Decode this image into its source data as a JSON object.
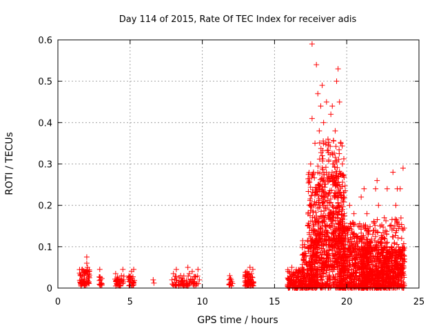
{
  "chart_data": {
    "type": "scatter",
    "title": "Day 114 of 2015, Rate Of TEC Index for receiver adis",
    "xlabel": "GPS time / hours",
    "ylabel": "ROTI / TECUs",
    "xlim": [
      0,
      25
    ],
    "ylim": [
      0,
      0.6
    ],
    "xticks": [
      0,
      5,
      10,
      15,
      20,
      25
    ],
    "yticks": [
      0,
      0.1,
      0.2,
      0.3,
      0.4,
      0.5,
      0.6
    ],
    "grid": true,
    "marker": "+",
    "color": "#ff0000",
    "series": [
      {
        "points": [
          [
            1.6,
            0.03
          ],
          [
            1.7,
            0.045
          ],
          [
            1.8,
            0.02
          ],
          [
            1.9,
            0.035
          ],
          [
            2.0,
            0.06
          ],
          [
            2.0,
            0.075
          ],
          [
            2.05,
            0.05
          ],
          [
            2.1,
            0.025
          ],
          [
            1.85,
            0.015
          ],
          [
            2.15,
            0.04
          ],
          [
            2.9,
            0.045
          ],
          [
            2.95,
            0.02
          ],
          [
            3.0,
            0.012
          ],
          [
            4.0,
            0.035
          ],
          [
            4.05,
            0.015
          ],
          [
            4.1,
            0.01
          ],
          [
            4.4,
            0.03
          ],
          [
            4.5,
            0.045
          ],
          [
            4.55,
            0.02
          ],
          [
            5.0,
            0.02
          ],
          [
            5.1,
            0.04
          ],
          [
            5.2,
            0.015
          ],
          [
            5.25,
            0.045
          ],
          [
            6.6,
            0.02
          ],
          [
            6.65,
            0.012
          ],
          [
            7.9,
            0.02
          ],
          [
            8.0,
            0.035
          ],
          [
            8.2,
            0.045
          ],
          [
            8.4,
            0.025
          ],
          [
            8.5,
            0.03
          ],
          [
            8.6,
            0.015
          ],
          [
            9.0,
            0.05
          ],
          [
            9.1,
            0.035
          ],
          [
            9.2,
            0.02
          ],
          [
            9.3,
            0.04
          ],
          [
            9.4,
            0.015
          ],
          [
            9.7,
            0.045
          ],
          [
            9.8,
            0.02
          ],
          [
            11.9,
            0.03
          ],
          [
            12.0,
            0.02
          ],
          [
            12.05,
            0.015
          ],
          [
            13.0,
            0.03
          ],
          [
            13.1,
            0.04
          ],
          [
            13.2,
            0.02
          ],
          [
            13.3,
            0.05
          ],
          [
            13.4,
            0.035
          ],
          [
            13.5,
            0.045
          ],
          [
            13.45,
            0.015
          ],
          [
            16.0,
            0.02
          ],
          [
            16.2,
            0.05
          ],
          [
            16.4,
            0.03
          ],
          [
            16.6,
            0.02
          ],
          [
            16.8,
            0.04
          ],
          [
            17.0,
            0.07
          ],
          [
            17.1,
            0.1
          ],
          [
            17.2,
            0.06
          ],
          [
            17.4,
            0.15
          ],
          [
            17.5,
            0.2
          ],
          [
            17.5,
            0.3
          ],
          [
            17.6,
            0.41
          ],
          [
            17.6,
            0.59
          ],
          [
            17.7,
            0.28
          ],
          [
            17.8,
            0.35
          ],
          [
            17.9,
            0.54
          ],
          [
            18.0,
            0.47
          ],
          [
            18.0,
            0.25
          ],
          [
            18.1,
            0.38
          ],
          [
            18.2,
            0.44
          ],
          [
            18.3,
            0.49
          ],
          [
            18.3,
            0.32
          ],
          [
            18.4,
            0.4
          ],
          [
            18.5,
            0.22
          ],
          [
            18.6,
            0.45
          ],
          [
            18.7,
            0.36
          ],
          [
            18.8,
            0.26
          ],
          [
            18.9,
            0.42
          ],
          [
            19.0,
            0.44
          ],
          [
            19.1,
            0.3
          ],
          [
            19.2,
            0.38
          ],
          [
            19.3,
            0.5
          ],
          [
            19.4,
            0.53
          ],
          [
            19.5,
            0.45
          ],
          [
            19.5,
            0.25
          ],
          [
            19.6,
            0.35
          ],
          [
            19.7,
            0.3
          ],
          [
            19.8,
            0.22
          ],
          [
            17.5,
            0.12
          ],
          [
            18.0,
            0.16
          ],
          [
            18.5,
            0.14
          ],
          [
            19.0,
            0.18
          ],
          [
            19.5,
            0.16
          ],
          [
            20.0,
            0.14
          ],
          [
            20.5,
            0.18
          ],
          [
            21.0,
            0.22
          ],
          [
            21.0,
            0.12
          ],
          [
            20.2,
            0.2
          ],
          [
            20.4,
            0.1
          ],
          [
            20.6,
            0.08
          ],
          [
            20.8,
            0.15
          ],
          [
            21.2,
            0.24
          ],
          [
            21.4,
            0.18
          ],
          [
            21.6,
            0.1
          ],
          [
            21.8,
            0.13
          ],
          [
            22.0,
            0.24
          ],
          [
            22.1,
            0.26
          ],
          [
            22.2,
            0.2
          ],
          [
            22.4,
            0.12
          ],
          [
            22.6,
            0.17
          ],
          [
            22.8,
            0.24
          ],
          [
            23.0,
            0.15
          ],
          [
            23.2,
            0.28
          ],
          [
            23.4,
            0.2
          ],
          [
            23.5,
            0.24
          ],
          [
            23.7,
            0.24
          ],
          [
            23.9,
            0.29
          ],
          [
            22.5,
            0.08
          ],
          [
            22.9,
            0.06
          ],
          [
            23.1,
            0.1
          ],
          [
            23.3,
            0.05
          ],
          [
            23.6,
            0.08
          ],
          [
            23.8,
            0.12
          ],
          [
            24.0,
            0.07
          ],
          [
            21.5,
            0.07
          ],
          [
            20.9,
            0.05
          ],
          [
            19.9,
            0.09
          ]
        ]
      }
    ],
    "clusters": [
      {
        "x": [
          1.5,
          2.2
        ],
        "y": [
          0.005,
          0.045
        ],
        "n": 60
      },
      {
        "x": [
          2.85,
          3.05
        ],
        "y": [
          0.005,
          0.03
        ],
        "n": 12
      },
      {
        "x": [
          3.95,
          4.6
        ],
        "y": [
          0.005,
          0.03
        ],
        "n": 30
      },
      {
        "x": [
          4.9,
          5.3
        ],
        "y": [
          0.005,
          0.03
        ],
        "n": 25
      },
      {
        "x": [
          7.9,
          9.8
        ],
        "y": [
          0.005,
          0.03
        ],
        "n": 70
      },
      {
        "x": [
          11.85,
          12.1
        ],
        "y": [
          0.005,
          0.025
        ],
        "n": 12
      },
      {
        "x": [
          12.95,
          13.55
        ],
        "y": [
          0.005,
          0.04
        ],
        "n": 60
      },
      {
        "x": [
          15.9,
          17.0
        ],
        "y": [
          0.0,
          0.045
        ],
        "n": 140
      },
      {
        "x": [
          16.9,
          18.0
        ],
        "y": [
          0.0,
          0.12
        ],
        "n": 180
      },
      {
        "x": [
          17.3,
          19.9
        ],
        "y": [
          0.0,
          0.28
        ],
        "n": 600
      },
      {
        "x": [
          18.0,
          19.8
        ],
        "y": [
          0.05,
          0.36
        ],
        "n": 260
      },
      {
        "x": [
          19.5,
          21.5
        ],
        "y": [
          0.0,
          0.16
        ],
        "n": 500
      },
      {
        "x": [
          21.0,
          24.0
        ],
        "y": [
          0.0,
          0.1
        ],
        "n": 650
      },
      {
        "x": [
          21.5,
          24.0
        ],
        "y": [
          0.03,
          0.17
        ],
        "n": 220
      }
    ]
  }
}
